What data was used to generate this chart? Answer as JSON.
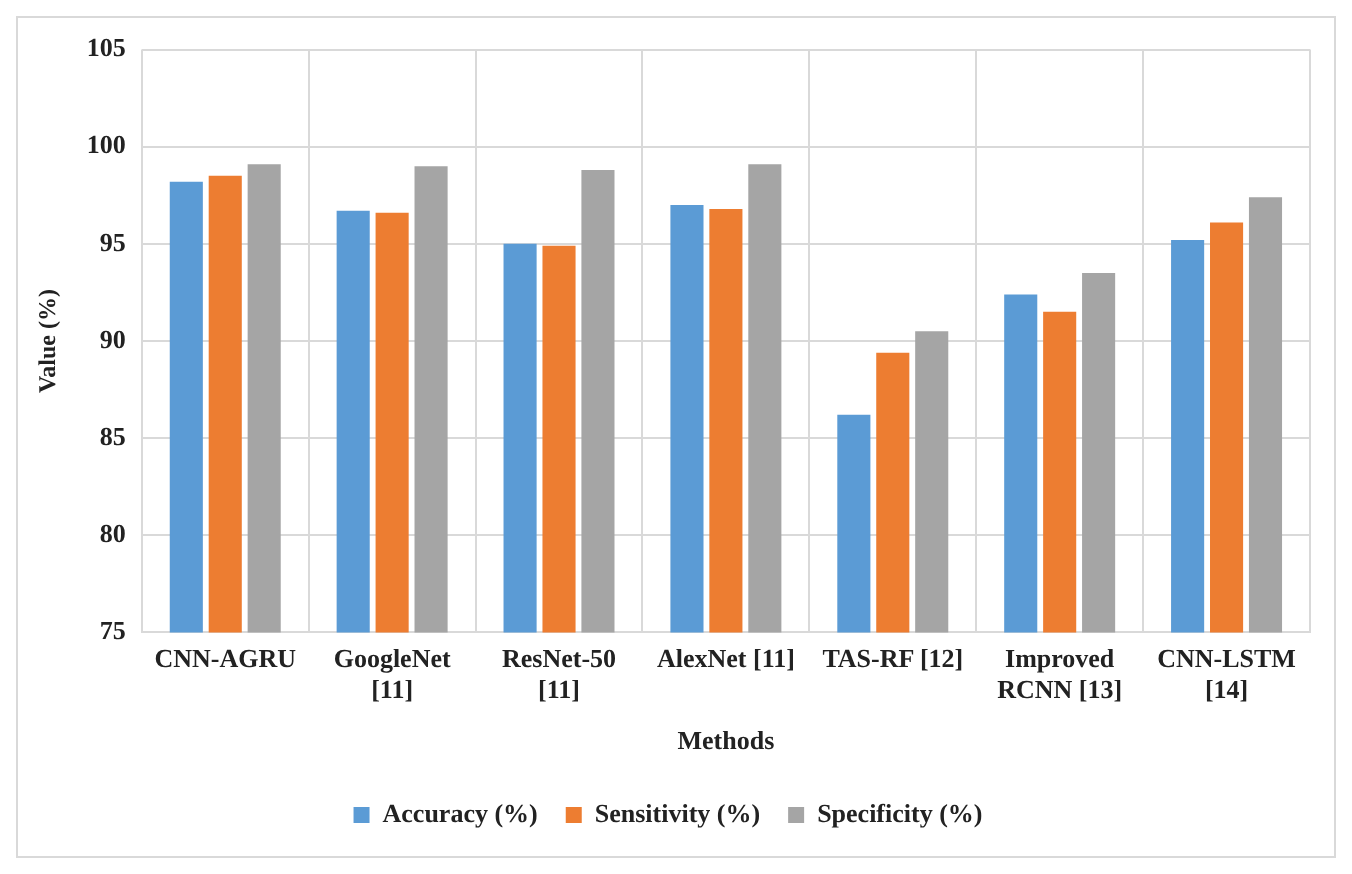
{
  "chart_data": {
    "type": "bar",
    "xlabel": "Methods",
    "ylabel": "Value (%)",
    "categories": [
      "CNN-AGRU",
      "GoogleNet [11]",
      "ResNet-50 [11]",
      "AlexNet [11]",
      "TAS-RF [12]",
      "Improved RCNN [13]",
      "CNN-LSTM [14]"
    ],
    "series": [
      {
        "name": "Accuracy (%)",
        "color": "#5b9bd5",
        "values": [
          98.2,
          96.7,
          95.0,
          97.0,
          86.2,
          92.4,
          95.2
        ]
      },
      {
        "name": "Sensitivity (%)",
        "color": "#ed7d31",
        "values": [
          98.5,
          96.6,
          94.9,
          96.8,
          89.4,
          91.5,
          96.1
        ]
      },
      {
        "name": "Specificity (%)",
        "color": "#a5a5a5",
        "values": [
          99.1,
          99.0,
          98.8,
          99.1,
          90.5,
          93.5,
          97.4
        ]
      }
    ],
    "ylim": [
      75,
      105
    ],
    "yticks": [
      75,
      80,
      85,
      90,
      95,
      100,
      105
    ],
    "grid": true,
    "legend": "bottom"
  }
}
